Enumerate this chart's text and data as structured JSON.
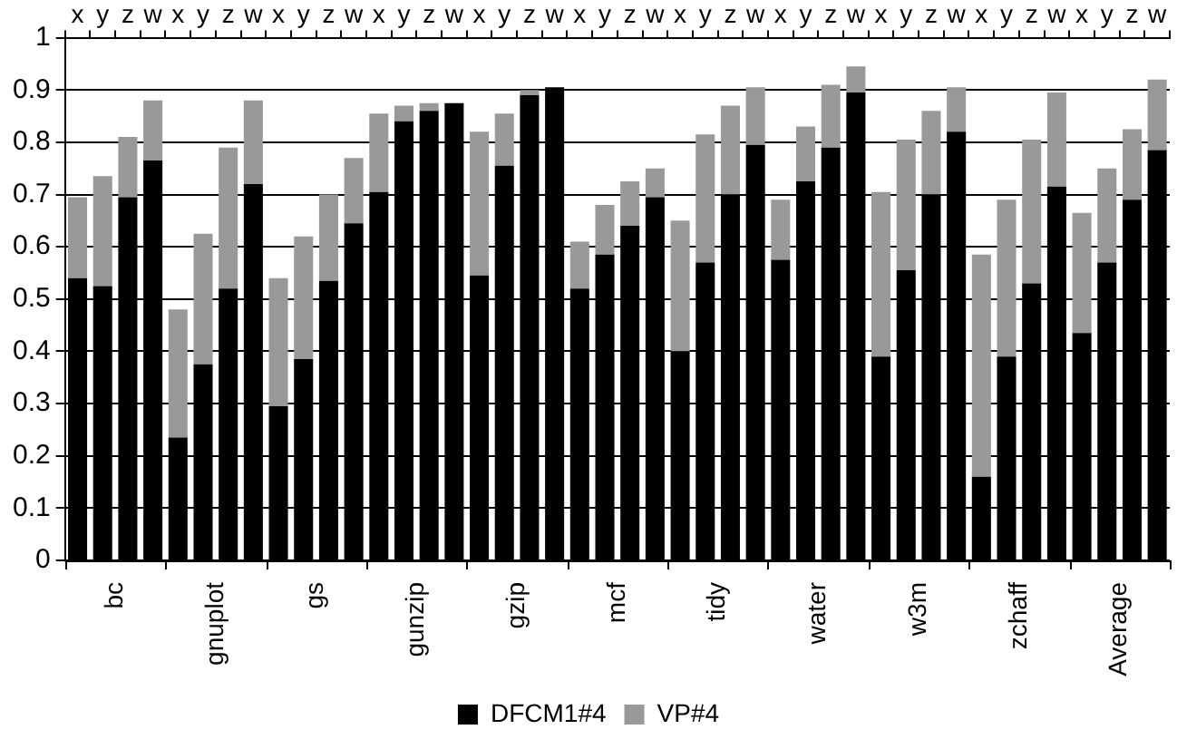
{
  "chart_data": {
    "type": "bar",
    "stacked": true,
    "categories": [
      "x",
      "y",
      "z",
      "w",
      "x",
      "y",
      "z",
      "w",
      "x",
      "y",
      "z",
      "w",
      "x",
      "y",
      "z",
      "w",
      "x",
      "y",
      "z",
      "w",
      "x",
      "y",
      "z",
      "w",
      "x",
      "y",
      "z",
      "w",
      "x",
      "y",
      "z",
      "w",
      "x",
      "y",
      "z",
      "w",
      "x",
      "y",
      "z",
      "w",
      "x",
      "y",
      "z",
      "w"
    ],
    "series": [
      {
        "name": "DFCM1#4",
        "color": "#000000",
        "values": [
          0.54,
          0.525,
          0.695,
          0.765,
          0.235,
          0.375,
          0.52,
          0.72,
          0.295,
          0.385,
          0.535,
          0.645,
          0.705,
          0.84,
          0.86,
          0.875,
          0.545,
          0.755,
          0.89,
          0.905,
          0.52,
          0.585,
          0.64,
          0.695,
          0.4,
          0.57,
          0.7,
          0.795,
          0.575,
          0.725,
          0.79,
          0.895,
          0.39,
          0.555,
          0.7,
          0.82,
          0.16,
          0.39,
          0.53,
          0.715,
          0.435,
          0.57,
          0.69,
          0.785
        ]
      },
      {
        "name": "VP#4",
        "color": "#999999",
        "values": [
          0.155,
          0.21,
          0.115,
          0.115,
          0.245,
          0.25,
          0.27,
          0.16,
          0.245,
          0.235,
          0.165,
          0.125,
          0.15,
          0.03,
          0.015,
          0,
          0.275,
          0.1,
          0.01,
          0,
          0.09,
          0.095,
          0.085,
          0.055,
          0.25,
          0.245,
          0.17,
          0.11,
          0.115,
          0.105,
          0.12,
          0.05,
          0.315,
          0.25,
          0.16,
          0.085,
          0.425,
          0.3,
          0.275,
          0.18,
          0.23,
          0.18,
          0.135,
          0.135
        ]
      }
    ],
    "ylim": [
      0,
      1
    ],
    "yticks": [
      0,
      0.1,
      0.2,
      0.3,
      0.4,
      0.5,
      0.6,
      0.7,
      0.8,
      0.9,
      1
    ],
    "grid": "y",
    "legend": "bottom",
    "annotations": [
      "bc",
      "gnuplot",
      "gs",
      "gunzip",
      "gzip",
      "mcf",
      "tidy",
      "water",
      "w3m",
      "zchaff",
      "Average"
    ]
  }
}
